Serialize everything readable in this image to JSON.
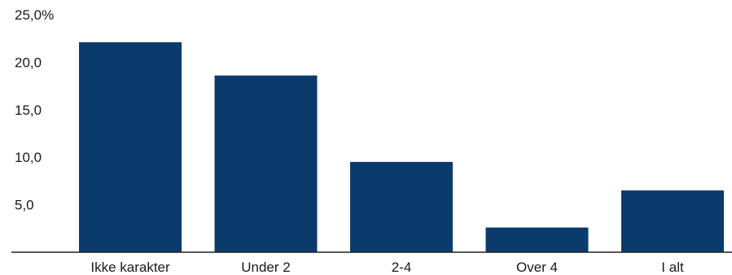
{
  "chart_data": {
    "type": "bar",
    "categories": [
      "Ikke karakter",
      "Under 2",
      "2-4",
      "Over 4",
      "I alt"
    ],
    "values": [
      22.1,
      18.6,
      9.5,
      2.6,
      6.5
    ],
    "ylim": [
      0,
      25
    ],
    "yticks": [
      5,
      10,
      15,
      20,
      25
    ],
    "ytick_labels": [
      "5,0",
      "10,0",
      "15,0",
      "20,0",
      "25,0%"
    ],
    "grid": false,
    "colors": {
      "bar": "#0b3b6c",
      "axis": "#222222"
    }
  }
}
